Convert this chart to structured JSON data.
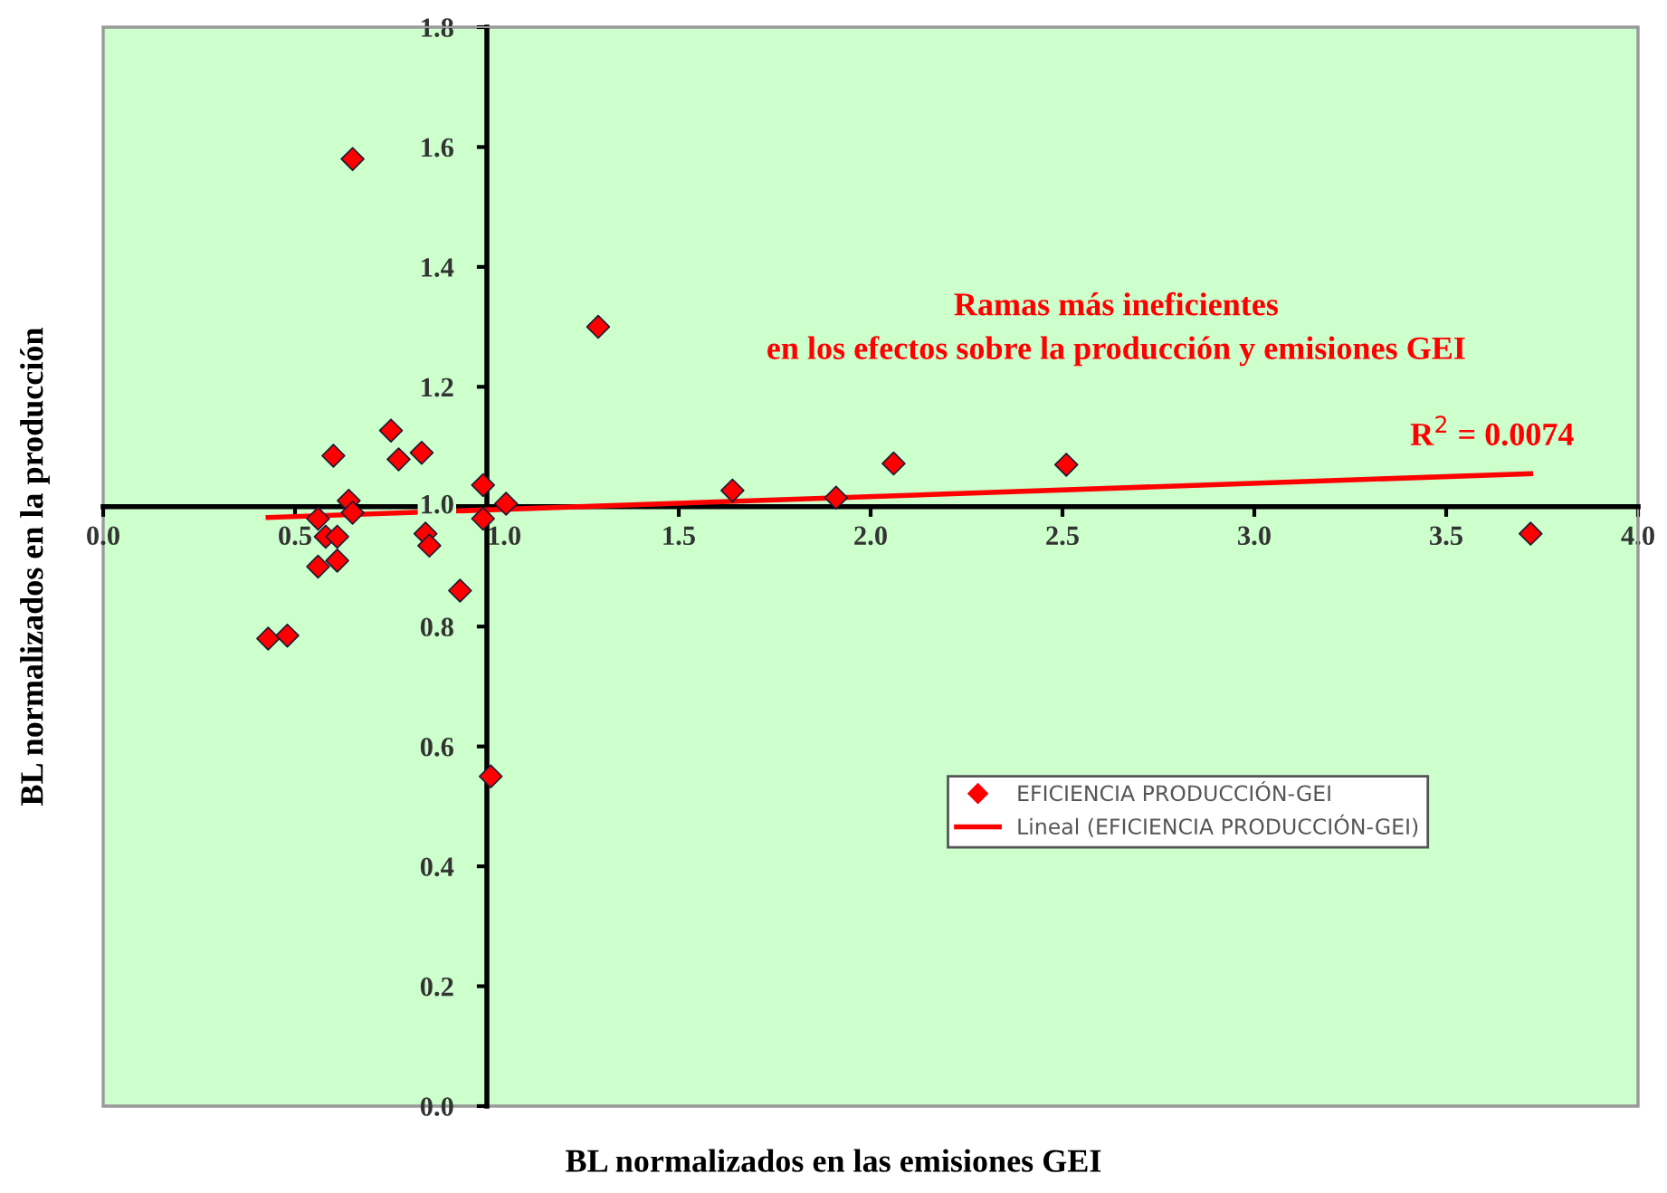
{
  "chart_data": {
    "type": "scatter",
    "xlabel": "BL normalizados en las emisiones GEI",
    "ylabel": "BL normalizados en la producción",
    "series": [
      {
        "name": "EFICIENCIA PRODUCCIÓN-GEI",
        "color": "#ff0000",
        "marker": "diamond",
        "x": [
          0.65,
          0.6,
          0.75,
          0.77,
          0.83,
          0.64,
          0.65,
          0.56,
          0.58,
          0.61,
          0.56,
          0.61,
          0.84,
          0.85,
          0.93,
          0.43,
          0.48,
          0.99,
          0.99,
          1.05,
          1.01,
          1.29,
          1.64,
          1.91,
          2.06,
          2.51,
          3.72
        ],
        "values": [
          1.58,
          1.085,
          1.127,
          1.079,
          1.09,
          1.01,
          0.99,
          0.98,
          0.95,
          0.95,
          0.9,
          0.91,
          0.955,
          0.935,
          0.86,
          0.78,
          0.785,
          1.036,
          0.98,
          1.005,
          0.55,
          1.3,
          1.027,
          1.015,
          1.072,
          1.07,
          0.955
        ]
      },
      {
        "name": "Lineal (EFICIENCIA PRODUCCIÓN-GEI)",
        "type": "line",
        "color": "#ff0000",
        "line_style": "solid",
        "marker": "none",
        "x": [
          0.43,
          3.72
        ],
        "values": [
          0.982,
          1.055
        ]
      }
    ],
    "annotations": [
      "Ramas más ineficientes\nen los efectos sobre la producción y emisiones GEI",
      "R$^{2}$ = 0.0074"
    ],
    "xlim": [
      0,
      4
    ],
    "xticks": [
      {
        "value": 0,
        "label": "0.0"
      },
      {
        "value": 0.5,
        "label": "0.5"
      },
      {
        "value": 1,
        "label": "1.0"
      },
      {
        "value": 1.5,
        "label": "1.5"
      },
      {
        "value": 2,
        "label": "2.0"
      },
      {
        "value": 2.5,
        "label": "2.5"
      },
      {
        "value": 3,
        "label": "3.0"
      },
      {
        "value": 3.5,
        "label": "3.5"
      },
      {
        "value": 4,
        "label": "4.0"
      }
    ],
    "ylim": [
      0,
      1.8
    ],
    "yticks": [
      {
        "value": 0,
        "label": "0.0"
      },
      {
        "value": 0.2,
        "label": "0.2"
      },
      {
        "value": 0.4,
        "label": "0.4"
      },
      {
        "value": 0.6,
        "label": "0.6"
      },
      {
        "value": 0.8,
        "label": "0.8"
      },
      {
        "value": 1,
        "label": "1.0"
      },
      {
        "value": 1.2,
        "label": "1.2"
      },
      {
        "value": 1.4,
        "label": "1.4"
      },
      {
        "value": 1.6,
        "label": "1.6"
      },
      {
        "value": 1.8,
        "label": "1.8"
      }
    ],
    "grid": false,
    "legend": "lower right"
  }
}
